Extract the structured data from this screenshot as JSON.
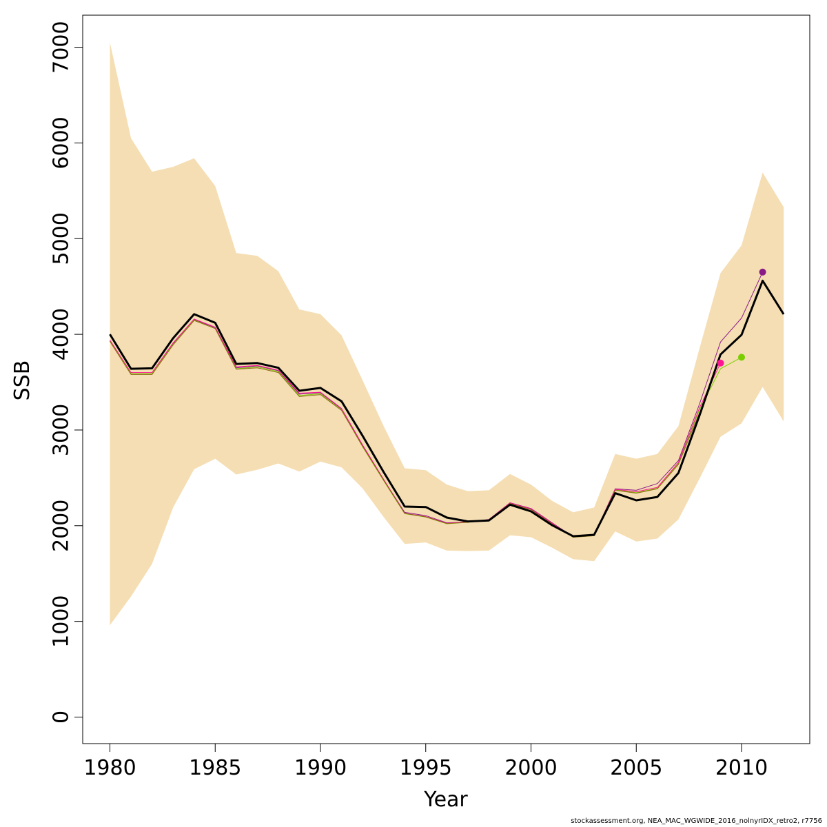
{
  "chart_data": {
    "type": "line",
    "title": "",
    "xlabel": "Year",
    "ylabel": "SSB",
    "xlim": [
      1979,
      1980,
      2012.9
    ],
    "x_ticks": [
      1980,
      1985,
      1990,
      1995,
      2000,
      2005,
      2010
    ],
    "ylim": [
      -300,
      7350
    ],
    "y_ticks": [
      0,
      1000,
      2000,
      3000,
      4000,
      5000,
      6000,
      7000
    ],
    "grid": false,
    "legend": "none",
    "colors": {
      "band": "#F5DEB3",
      "main": "#000000",
      "retro_2011": "#8B1A89",
      "retro_2010": "#7CCD00",
      "retro_2009": "#FF1493",
      "retro_2008": "#8B6914"
    },
    "band": {
      "x": [
        1980,
        1981,
        1982,
        1983,
        1984,
        1985,
        1986,
        1987,
        1988,
        1989,
        1990,
        1991,
        1992,
        1993,
        1994,
        1995,
        1996,
        1997,
        1998,
        1999,
        2000,
        2001,
        2002,
        2003,
        2004,
        2005,
        2006,
        2007,
        2008,
        2009,
        2010,
        2011,
        2012
      ],
      "lower": [
        960,
        1260,
        1600,
        2190,
        2590,
        2700,
        2535,
        2585,
        2650,
        2565,
        2670,
        2610,
        2390,
        2090,
        1810,
        1825,
        1740,
        1735,
        1740,
        1900,
        1880,
        1770,
        1650,
        1630,
        1940,
        1835,
        1865,
        2065,
        2490,
        2930,
        3070,
        3450,
        3090
      ],
      "upper": [
        7050,
        6050,
        5700,
        5750,
        5840,
        5550,
        4850,
        4820,
        4660,
        4260,
        4210,
        3990,
        3520,
        3040,
        2600,
        2580,
        2430,
        2360,
        2370,
        2540,
        2430,
        2260,
        2140,
        2190,
        2750,
        2700,
        2750,
        3040,
        3850,
        4640,
        4930,
        5690,
        5330
      ]
    },
    "series": [
      {
        "x": [
          1980,
          1981,
          1982,
          1983,
          1984,
          1985,
          1986,
          1987,
          1988,
          1989,
          1990,
          1991,
          1992,
          1993,
          1994,
          1995,
          1996,
          1997,
          1998,
          1999,
          2000,
          2001,
          2002,
          2003,
          2004,
          2005,
          2006,
          2007,
          2008,
          2009,
          2010,
          2011,
          2012
        ],
        "values": [
          4000,
          3640,
          3645,
          3960,
          4210,
          4120,
          3690,
          3700,
          3650,
          3410,
          3440,
          3300,
          2940,
          2560,
          2200,
          2195,
          2085,
          2045,
          2055,
          2220,
          2150,
          2005,
          1890,
          1905,
          2340,
          2265,
          2300,
          2550,
          3150,
          3790,
          3995,
          4560,
          4210
        ],
        "color_key": "main",
        "endpoint_marker": false
      },
      {
        "x": [
          1980,
          1981,
          1982,
          1983,
          1984,
          1985,
          1986,
          1987,
          1988,
          1989,
          1990,
          1991,
          1992,
          1993,
          1994,
          1995,
          1996,
          1997,
          1998,
          1999,
          2000,
          2001,
          2002,
          2003,
          2004,
          2005,
          2006,
          2007,
          2008,
          2009,
          2010,
          2011
        ],
        "values": [
          3930,
          3590,
          3590,
          3900,
          4155,
          4070,
          3650,
          3670,
          3620,
          3375,
          3390,
          3220,
          2840,
          2480,
          2140,
          2105,
          2030,
          2040,
          2065,
          2240,
          2180,
          2030,
          1885,
          1900,
          2385,
          2370,
          2440,
          2680,
          3270,
          3920,
          4170,
          4650
        ],
        "color_key": "retro_2011",
        "endpoint_marker": true
      },
      {
        "x": [
          1980,
          1981,
          1982,
          1983,
          1984,
          1985,
          1986,
          1987,
          1988,
          1989,
          1990,
          1991,
          1992,
          1993,
          1994,
          1995,
          1996,
          1997,
          1998,
          1999,
          2000,
          2001,
          2002,
          2003,
          2004,
          2005,
          2006,
          2007,
          2008,
          2009,
          2010
        ],
        "values": [
          3930,
          3590,
          3590,
          3895,
          4150,
          4060,
          3640,
          3660,
          3610,
          3360,
          3380,
          3210,
          2825,
          2470,
          2125,
          2090,
          2020,
          2035,
          2060,
          2235,
          2170,
          2020,
          1880,
          1895,
          2375,
          2345,
          2390,
          2650,
          3210,
          3640,
          3760
        ],
        "color_key": "retro_2010",
        "endpoint_marker": true
      },
      {
        "x": [
          1980,
          1981,
          1982,
          1983,
          1984,
          1985,
          1986,
          1987,
          1988,
          1989,
          1990,
          1991,
          1992,
          1993,
          1994,
          1995,
          1996,
          1997,
          1998,
          1999,
          2000,
          2001,
          2002,
          2003,
          2004,
          2005,
          2006,
          2007,
          2008,
          2009
        ],
        "values": [
          3940,
          3600,
          3600,
          3910,
          4160,
          4075,
          3660,
          3675,
          3625,
          3385,
          3395,
          3225,
          2845,
          2485,
          2130,
          2095,
          2025,
          2040,
          2062,
          2238,
          2175,
          2025,
          1882,
          1897,
          2380,
          2355,
          2400,
          2660,
          3230,
          3700
        ],
        "color_key": "retro_2009",
        "endpoint_marker": true
      },
      {
        "x": [
          1980,
          1981,
          1982,
          1983,
          1984,
          1985,
          1986,
          1987,
          1988,
          1989,
          1990,
          1991,
          1992,
          1993,
          1994,
          1995,
          1996,
          1997,
          1998,
          1999,
          2000,
          2001,
          2002,
          2003,
          2004,
          2005,
          2006,
          2007,
          2008
        ],
        "values": [
          3925,
          3580,
          3580,
          3890,
          4145,
          4060,
          3635,
          3650,
          3600,
          3350,
          3370,
          3205,
          2830,
          2475,
          2128,
          2092,
          2022,
          2035,
          2058,
          2232,
          2168,
          2018,
          1880,
          1895,
          2370,
          2340,
          2385,
          2640,
          3180
        ],
        "color_key": "retro_2008",
        "endpoint_marker": false
      }
    ]
  },
  "footer_text": "stockassessment.org, NEA_MAC_WGWIDE_2016_nolnyrIDX_retro2, r7756"
}
